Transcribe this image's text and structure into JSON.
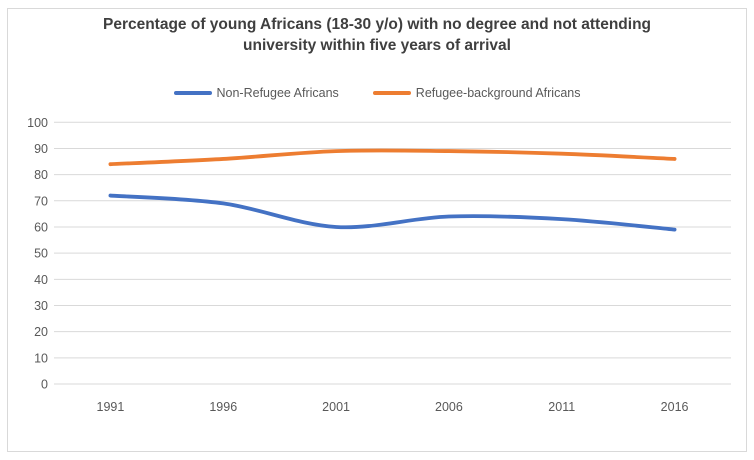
{
  "chart_data": {
    "type": "line",
    "title": "Percentage of young Africans (18-30 y/o) with no degree and not attending university within five years of arrival",
    "categories": [
      "1991",
      "1996",
      "2001",
      "2006",
      "2011",
      "2016"
    ],
    "series": [
      {
        "name": "Non-Refugee Africans",
        "color": "#4472C4",
        "values": [
          72,
          69,
          60,
          64,
          63,
          59
        ]
      },
      {
        "name": "Refugee-background Africans",
        "color": "#ED7D31",
        "values": [
          84,
          86,
          89,
          89,
          88,
          86
        ]
      }
    ],
    "xlabel": "",
    "ylabel": "",
    "ylim": [
      0,
      100
    ],
    "yticks": [
      0,
      10,
      20,
      30,
      40,
      50,
      60,
      70,
      80,
      90,
      100
    ],
    "grid": true,
    "legend_position": "top",
    "smooth_lines": true
  },
  "colors": {
    "gridline": "#D9D9D9",
    "frame_border": "#D9D9D9",
    "tick_label": "#595959",
    "title": "#3F3F3F",
    "background": "#FFFFFF"
  }
}
